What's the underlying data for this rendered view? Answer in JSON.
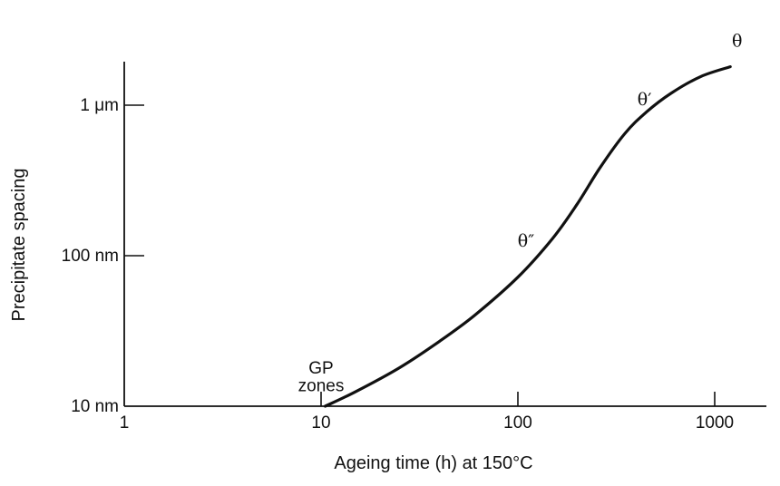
{
  "chart_data": {
    "type": "line",
    "xlabel": "Ageing time (h) at 150°C",
    "ylabel": "Precipitate spacing",
    "x_scale": "log",
    "y_scale": "log",
    "xlim": [
      1,
      1400
    ],
    "ylim": [
      10,
      1800
    ],
    "x_ticks": [
      {
        "value": 1,
        "label": "1"
      },
      {
        "value": 10,
        "label": "10"
      },
      {
        "value": 100,
        "label": "100"
      },
      {
        "value": 1000,
        "label": "1000"
      }
    ],
    "y_ticks": [
      {
        "value": 10,
        "label": "10 nm"
      },
      {
        "value": 100,
        "label": "100 nm"
      },
      {
        "value": 1000,
        "label": "1 μm"
      }
    ],
    "grid": false,
    "series": [
      {
        "points": [
          {
            "x": 10.5,
            "y": 10
          },
          {
            "x": 15,
            "y": 12.5
          },
          {
            "x": 25,
            "y": 18
          },
          {
            "x": 40,
            "y": 27
          },
          {
            "x": 60,
            "y": 40
          },
          {
            "x": 100,
            "y": 72
          },
          {
            "x": 150,
            "y": 130
          },
          {
            "x": 200,
            "y": 220
          },
          {
            "x": 260,
            "y": 380
          },
          {
            "x": 350,
            "y": 650
          },
          {
            "x": 450,
            "y": 900
          },
          {
            "x": 600,
            "y": 1200
          },
          {
            "x": 850,
            "y": 1550
          },
          {
            "x": 1200,
            "y": 1800
          }
        ]
      }
    ],
    "annotations": [
      {
        "label": "GP",
        "x": 10,
        "y": 16.5
      },
      {
        "label": "zones",
        "x": 10,
        "y": 12.6
      },
      {
        "label": "θ″",
        "x": 110,
        "y": 115
      },
      {
        "label": "θ′",
        "x": 440,
        "y": 1000
      },
      {
        "label": "θ",
        "x": 1300,
        "y": 2450
      }
    ]
  }
}
